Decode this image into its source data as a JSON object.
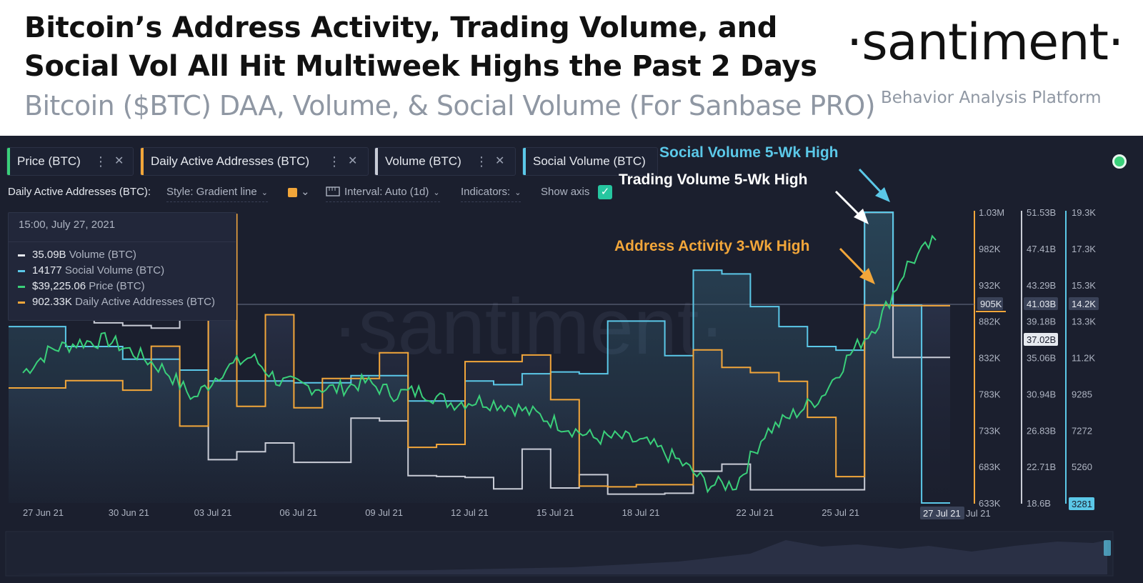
{
  "header": {
    "title_line1": "Bitcoin’s Address Activity, Trading Volume, and",
    "title_line2": "Social Vol All Hit Multiweek Highs the Past 2 Days",
    "subtitle": "Bitcoin ($BTC) DAA, Volume, & Social Volume (For Sanbase PRO)",
    "brand": "·santiment·",
    "brand_tagline": "Behavior Analysis Platform"
  },
  "tabs": [
    {
      "label": "Price (BTC)",
      "color": "#3ad07a"
    },
    {
      "label": "Daily Active Addresses (BTC)",
      "color": "#f2a63a"
    },
    {
      "label": "Volume (BTC)",
      "color": "#c9ccd6"
    },
    {
      "label": "Social Volume (BTC)",
      "color": "#5bc8e8"
    }
  ],
  "tab_menu_glyph": "⋮",
  "tab_close_glyph": "✕",
  "toolbar": {
    "metric_label": "Daily Active Addresses (BTC):",
    "style": "Style: Gradient line",
    "interval": "Interval: Auto (1d)",
    "indicators": "Indicators:",
    "show_axis": "Show axis",
    "chevron": "⌄",
    "check": "✓"
  },
  "tooltip": {
    "date": "15:00, July 27, 2021",
    "rows": [
      {
        "value": "35.09B",
        "label": "Volume (BTC)",
        "color": "#e6e9ef"
      },
      {
        "value": "14177",
        "label": "Social Volume (BTC)",
        "color": "#5bc8e8"
      },
      {
        "value": "$39,225.06",
        "label": "Price (BTC)",
        "color": "#3ad07a"
      },
      {
        "value": "902.33K",
        "label": "Daily Active Addresses (BTC)",
        "color": "#f2a63a"
      }
    ]
  },
  "annotations": {
    "social": "Social Volume 5-Wk High",
    "trading": "Trading Volume 5-Wk High",
    "address": "Address Activity 3-Wk High"
  },
  "watermark": "·santiment·",
  "colors": {
    "price": "#3ad07a",
    "daa": "#f2a63a",
    "volume": "#c9ccd6",
    "social": "#5bc8e8",
    "bg": "#1b1f2e"
  },
  "chart_data": {
    "type": "line",
    "title": "Bitcoin ($BTC) DAA, Volume, & Social Volume",
    "x": [
      "26 Jun",
      "27 Jun",
      "28 Jun",
      "29 Jun",
      "30 Jun",
      "01 Jul",
      "02 Jul",
      "03 Jul",
      "04 Jul",
      "05 Jul",
      "06 Jul",
      "07 Jul",
      "08 Jul",
      "09 Jul",
      "10 Jul",
      "11 Jul",
      "12 Jul",
      "13 Jul",
      "14 Jul",
      "15 Jul",
      "16 Jul",
      "17 Jul",
      "18 Jul",
      "19 Jul",
      "20 Jul",
      "21 Jul",
      "22 Jul",
      "23 Jul",
      "24 Jul",
      "25 Jul",
      "26 Jul",
      "27 Jul",
      "28 Jul"
    ],
    "x_ticks": [
      "27 Jun 21",
      "30 Jun 21",
      "03 Jul 21",
      "06 Jul 21",
      "09 Jul 21",
      "12 Jul 21",
      "15 Jul 21",
      "18 Jul 21",
      "22 Jul 21",
      "25 Jul 21",
      "27 Jul 21",
      "Jul 21"
    ],
    "series": [
      {
        "name": "Daily Active Addresses (BTC)",
        "unit": "addresses",
        "values": [
          790000,
          790000,
          800000,
          800000,
          787000,
          847000,
          738000,
          1027000,
          765000,
          890000,
          763000,
          803000,
          803000,
          838000,
          709000,
          713000,
          826000,
          826000,
          835000,
          774000,
          656000,
          655000,
          658000,
          658000,
          842000,
          818000,
          811000,
          799000,
          750000,
          669000,
          903000,
          902330,
          902330
        ]
      },
      {
        "name": "Volume (BTC)",
        "unit": "BTC",
        "values": [
          40200000000,
          40200000000,
          39500000000,
          39000000000,
          38700000000,
          38400000000,
          40100000000,
          23500000000,
          24400000000,
          25400000000,
          23200000000,
          23200000000,
          28200000000,
          27900000000,
          21700000000,
          21600000000,
          21500000000,
          20200000000,
          24700000000,
          20300000000,
          21800000000,
          19600000000,
          19600000000,
          19700000000,
          22200000000,
          23000000000,
          20100000000,
          20100000000,
          20100000000,
          20100000000,
          51500000000,
          35090000000,
          35090000000
        ]
      },
      {
        "name": "Social Volume (BTC)",
        "unit": "mentions",
        "values": [
          13000,
          13000,
          11900,
          11900,
          11200,
          11200,
          10600,
          10000,
          10000,
          10000,
          9900,
          9900,
          10300,
          10300,
          8900,
          8900,
          10000,
          9800,
          10400,
          10500,
          10400,
          13300,
          13300,
          11400,
          16100,
          15900,
          14100,
          13000,
          11900,
          11700,
          19300,
          14177,
          3281
        ]
      },
      {
        "name": "Price (BTC)",
        "unit": "USD",
        "values": [
          34600,
          35600,
          35900,
          36000,
          35400,
          34700,
          33500,
          34700,
          35300,
          34200,
          34000,
          33900,
          34200,
          33700,
          33800,
          33300,
          33400,
          33200,
          32800,
          32300,
          31800,
          31800,
          31500,
          30800,
          29800,
          29800,
          32000,
          32800,
          33600,
          35400,
          36800,
          39225,
          40300
        ]
      }
    ],
    "axes": [
      {
        "series": "Daily Active Addresses (BTC)",
        "ylim": [
          633000,
          1030000
        ],
        "ticks": [
          "1.03M",
          "982K",
          "932K",
          "882K",
          "832K",
          "783K",
          "733K",
          "683K",
          "633K"
        ],
        "badge": "905K"
      },
      {
        "series": "Volume (BTC)",
        "ylim": [
          18600000000,
          51530000000
        ],
        "ticks": [
          "51.53B",
          "47.41B",
          "43.29B",
          "39.18B",
          "35.06B",
          "30.94B",
          "26.83B",
          "22.71B",
          "18.6B"
        ],
        "badge": "41.03B",
        "badge2": "37.02B"
      },
      {
        "series": "Social Volume (BTC)",
        "ylim": [
          3281,
          19300
        ],
        "ticks": [
          "19.3K",
          "17.3K",
          "15.3K",
          "13.3K",
          "11.2K",
          "9285",
          "7272",
          "5260",
          "3281"
        ],
        "badge": "14.2K"
      },
      {
        "series": "Price (BTC)",
        "ylim": [
          29000,
          41500
        ],
        "visible": false
      }
    ],
    "legend": "top-left"
  }
}
